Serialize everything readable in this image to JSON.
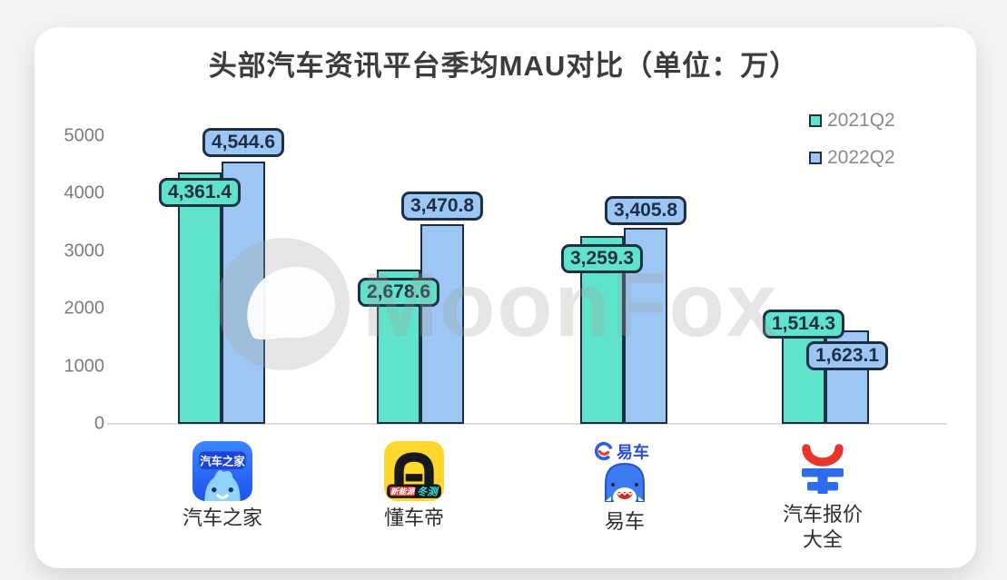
{
  "chart_data": {
    "type": "bar",
    "title": "头部汽车资讯平台季均MAU对比（单位：万）",
    "unit": "万",
    "categories": [
      "汽车之家",
      "懂车帝",
      "易车",
      "汽车报价大全"
    ],
    "series": [
      {
        "name": "2021Q2",
        "color": "#5fe3ca",
        "values": [
          4361.4,
          2678.6,
          3259.3,
          1514.3
        ]
      },
      {
        "name": "2022Q2",
        "color": "#9cc6f3",
        "values": [
          4544.6,
          3470.8,
          3405.8,
          1623.1
        ]
      }
    ],
    "value_labels": [
      [
        "4,361.4",
        "2,678.6",
        "3,259.3",
        "1,514.3"
      ],
      [
        "4,544.6",
        "3,470.8",
        "3,405.8",
        "1,623.1"
      ]
    ],
    "y_ticks": [
      "0",
      "1000",
      "2000",
      "3000",
      "4000",
      "5000"
    ],
    "ylim": [
      0,
      5000
    ],
    "grid": false,
    "legend_position": "top-right",
    "bar_border_color": "#1d2e45"
  },
  "watermark": {
    "text": "MoonFox"
  },
  "icons": {
    "autohome": {
      "alt": "汽车之家-app-icon",
      "badge_text": "汽车之家"
    },
    "dongchedi": {
      "alt": "懂车帝-app-icon",
      "banner_left": "新能源",
      "banner_right": "冬测"
    },
    "yiche": {
      "alt": "易车-logo",
      "logo_text": "易车"
    },
    "qichebaojia": {
      "alt": "汽车报价大全-logo"
    }
  }
}
